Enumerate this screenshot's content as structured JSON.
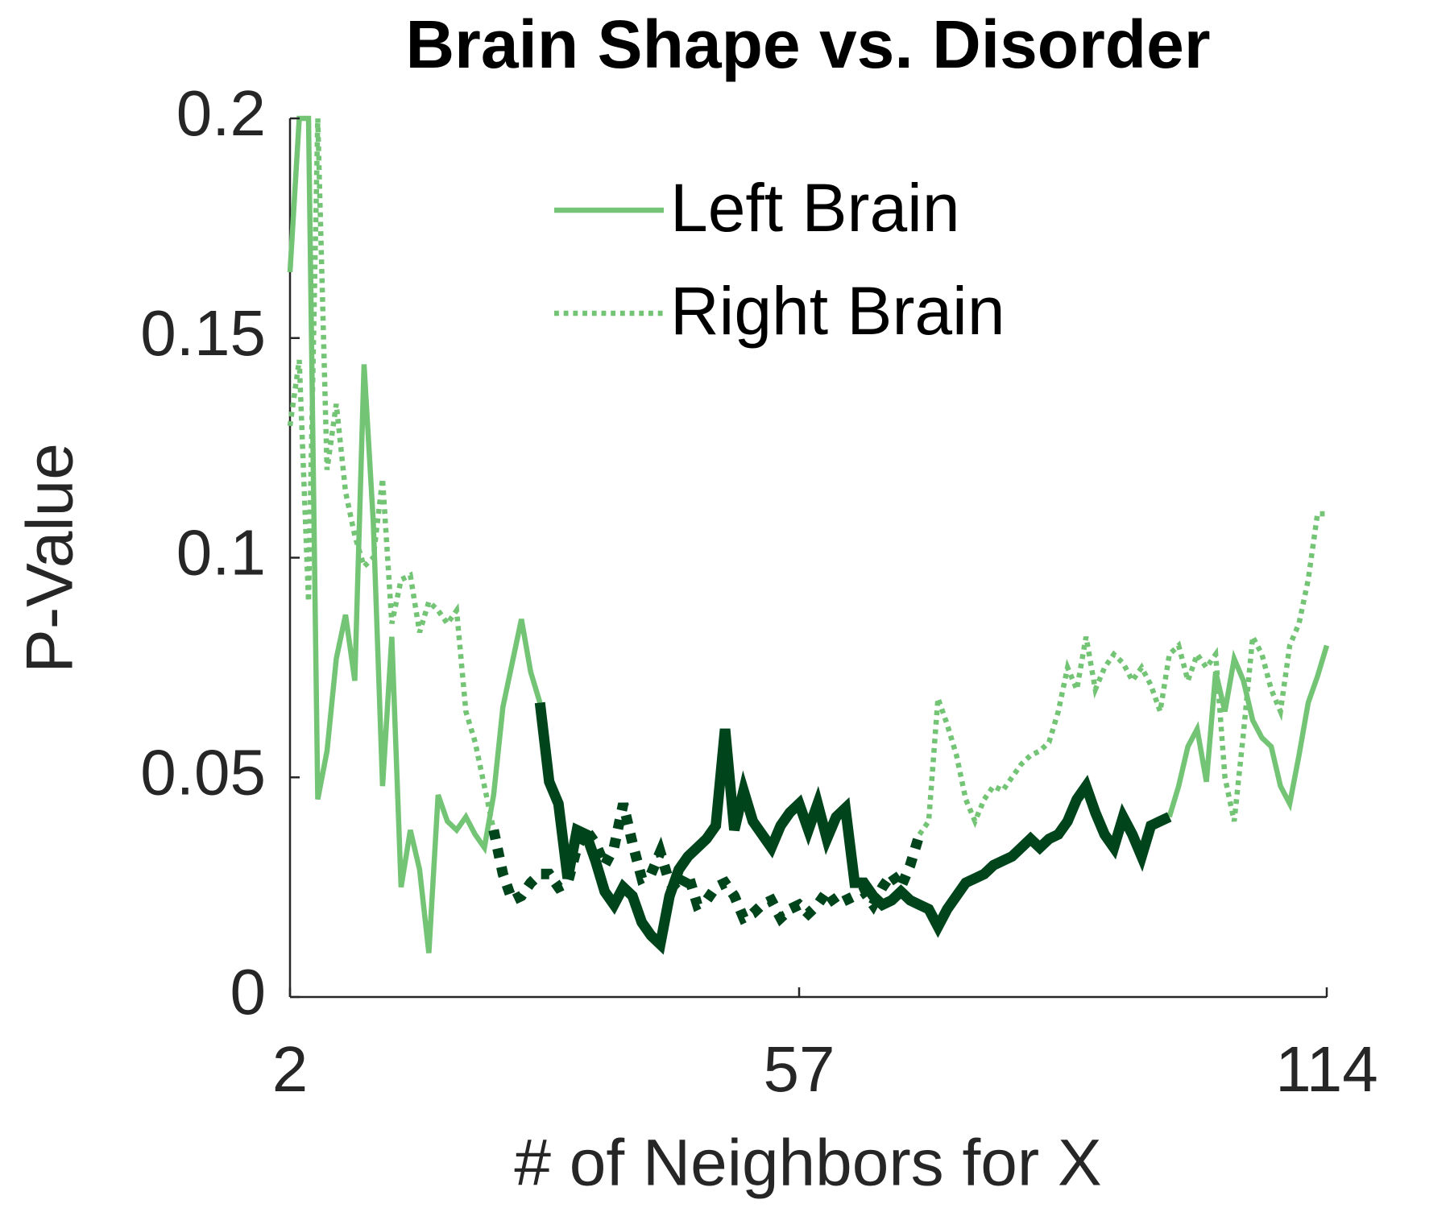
{
  "chart_data": {
    "type": "line",
    "title": "Brain Shape vs. Disorder",
    "xlabel": "# of Neighbors for X",
    "ylabel": "P-Value",
    "xlim": [
      2,
      114
    ],
    "xticks": [
      2,
      57,
      114
    ],
    "ylim": [
      0,
      0.2
    ],
    "yticks": [
      0,
      0.05,
      0.1,
      0.15,
      0.2
    ],
    "legend": "top-right",
    "x": [
      2,
      3,
      4,
      5,
      6,
      7,
      8,
      9,
      10,
      11,
      12,
      13,
      14,
      15,
      16,
      17,
      18,
      19,
      20,
      21,
      22,
      23,
      24,
      25,
      26,
      27,
      28,
      29,
      30,
      31,
      32,
      33,
      34,
      35,
      36,
      37,
      38,
      39,
      40,
      41,
      42,
      43,
      44,
      45,
      46,
      47,
      48,
      49,
      50,
      51,
      52,
      53,
      54,
      55,
      56,
      57,
      58,
      59,
      60,
      61,
      62,
      63,
      64,
      65,
      66,
      67,
      68,
      69,
      70,
      71,
      72,
      73,
      74,
      75,
      76,
      77,
      78,
      79,
      80,
      81,
      82,
      83,
      84,
      85,
      86,
      87,
      88,
      89,
      90,
      91,
      92,
      93,
      94,
      95,
      96,
      97,
      98,
      99,
      100,
      101,
      102,
      103,
      104,
      105,
      106,
      107,
      108,
      109,
      110,
      111,
      112,
      113,
      114
    ],
    "series": [
      {
        "name": "Left Brain",
        "color": "#74c476",
        "dash": "solid",
        "highlight": {
          "from": 29,
          "to": 97,
          "color": "#00441b"
        },
        "values": [
          0.165,
          0.2,
          0.2,
          0.045,
          0.056,
          0.077,
          0.087,
          0.072,
          0.144,
          0.108,
          0.048,
          0.082,
          0.025,
          0.038,
          0.029,
          0.01,
          0.046,
          0.04,
          0.038,
          0.041,
          0.037,
          0.034,
          0.046,
          0.066,
          0.076,
          0.086,
          0.074,
          0.067,
          0.049,
          0.044,
          0.027,
          0.038,
          0.037,
          0.031,
          0.024,
          0.021,
          0.025,
          0.023,
          0.017,
          0.014,
          0.012,
          0.023,
          0.029,
          0.032,
          0.034,
          0.036,
          0.039,
          0.061,
          0.038,
          0.047,
          0.04,
          0.037,
          0.034,
          0.039,
          0.042,
          0.044,
          0.038,
          0.044,
          0.036,
          0.041,
          0.043,
          0.026,
          0.026,
          0.023,
          0.021,
          0.022,
          0.024,
          0.022,
          0.021,
          0.02,
          0.016,
          0.02,
          0.023,
          0.026,
          0.027,
          0.028,
          0.03,
          0.031,
          0.032,
          0.034,
          0.036,
          0.034,
          0.036,
          0.037,
          0.04,
          0.045,
          0.048,
          0.042,
          0.037,
          0.034,
          0.041,
          0.037,
          0.032,
          0.039,
          0.04,
          0.041,
          0.048,
          0.057,
          0.061,
          0.049,
          0.074,
          0.065,
          0.077,
          0.072,
          0.063,
          0.059,
          0.057,
          0.048,
          0.044,
          0.055,
          0.067,
          0.073,
          0.08
        ]
      },
      {
        "name": "Right Brain",
        "color": "#74c476",
        "dash": "dotted",
        "highlight": {
          "from": 24,
          "to": 70,
          "color": "#00441b"
        },
        "values": [
          0.13,
          0.145,
          0.09,
          0.2,
          0.12,
          0.135,
          0.115,
          0.105,
          0.098,
          0.1,
          0.118,
          0.085,
          0.095,
          0.096,
          0.083,
          0.09,
          0.088,
          0.085,
          0.088,
          0.065,
          0.058,
          0.048,
          0.038,
          0.028,
          0.022,
          0.023,
          0.026,
          0.028,
          0.028,
          0.025,
          0.026,
          0.034,
          0.038,
          0.035,
          0.03,
          0.034,
          0.044,
          0.035,
          0.027,
          0.028,
          0.033,
          0.026,
          0.024,
          0.028,
          0.021,
          0.022,
          0.025,
          0.026,
          0.023,
          0.018,
          0.019,
          0.021,
          0.022,
          0.018,
          0.02,
          0.021,
          0.019,
          0.021,
          0.024,
          0.021,
          0.022,
          0.023,
          0.024,
          0.021,
          0.025,
          0.028,
          0.025,
          0.03,
          0.037,
          0.04,
          0.068,
          0.062,
          0.055,
          0.045,
          0.04,
          0.045,
          0.048,
          0.047,
          0.05,
          0.053,
          0.055,
          0.056,
          0.058,
          0.065,
          0.075,
          0.07,
          0.082,
          0.07,
          0.075,
          0.078,
          0.076,
          0.072,
          0.075,
          0.071,
          0.065,
          0.078,
          0.08,
          0.072,
          0.078,
          0.075,
          0.078,
          0.05,
          0.04,
          0.06,
          0.082,
          0.078,
          0.07,
          0.065,
          0.08,
          0.085,
          0.095,
          0.11,
          0.11
        ]
      }
    ]
  }
}
